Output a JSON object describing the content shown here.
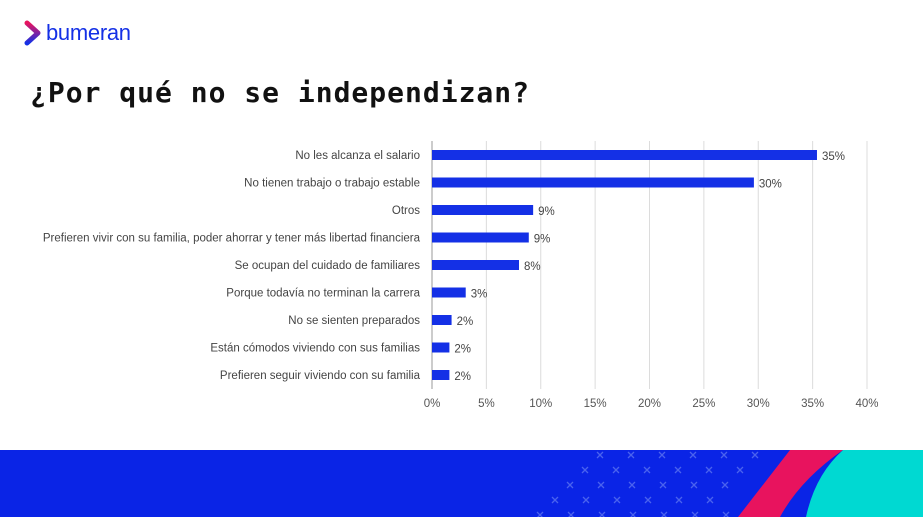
{
  "brand": {
    "name": "bumeran",
    "colors": {
      "blue": "#1430e6",
      "pink": "#e8135e",
      "cyan": "#00d9d2"
    }
  },
  "title": "¿Por qué no se independizan?",
  "chart_data": {
    "type": "bar",
    "orientation": "horizontal",
    "title": "¿Por qué no se independizan?",
    "categories": [
      "No les alcanza el salario",
      "No tienen trabajo o trabajo estable",
      "Otros",
      "Prefieren vivir con su familia, poder ahorrar y tener más libertad financiera",
      "Se ocupan del cuidado de familiares",
      "Porque todavía no terminan la carrera",
      "No se sienten preparados",
      "Están cómodos viviendo con sus familias",
      "Prefieren seguir viviendo con su familia"
    ],
    "values": [
      35.4,
      29.6,
      9.3,
      8.9,
      8.0,
      3.1,
      1.8,
      1.6,
      1.6
    ],
    "data_labels": [
      "35%",
      "30%",
      "9%",
      "9%",
      "8%",
      "3%",
      "2%",
      "2%",
      "2%"
    ],
    "xlim": [
      0,
      40
    ],
    "xticks": [
      "0%",
      "5%",
      "10%",
      "15%",
      "20%",
      "25%",
      "30%",
      "35%",
      "40%"
    ],
    "grid": true,
    "bar_color": "#1430e6",
    "xlabel": "",
    "ylabel": ""
  }
}
